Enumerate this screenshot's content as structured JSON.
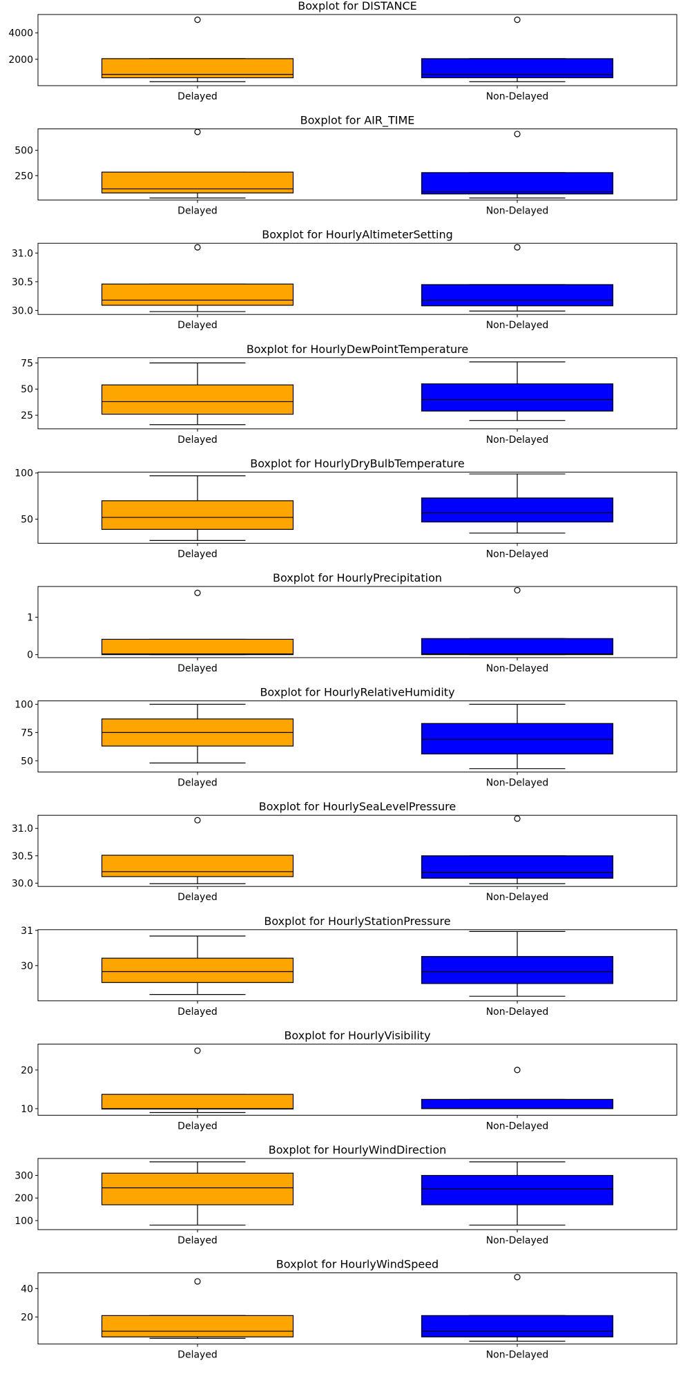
{
  "categories": [
    "Delayed",
    "Non-Delayed"
  ],
  "colors": {
    "Delayed": "#ffa500",
    "Non-Delayed": "#0000ff"
  },
  "chart_data": [
    {
      "type": "boxplot",
      "title": "Boxplot for DISTANCE",
      "ylim": [
        0,
        5400
      ],
      "yticks": [
        2000,
        4000
      ],
      "ytick_labels": [
        "2000",
        "4000"
      ],
      "boxes": [
        {
          "category": "Delayed",
          "whislo": 300,
          "q1": 600,
          "med": 850,
          "q3": 2050,
          "whishi": 2050,
          "fliers": [
            5000
          ]
        },
        {
          "category": "Non-Delayed",
          "whislo": 300,
          "q1": 600,
          "med": 850,
          "q3": 2050,
          "whishi": 2050,
          "fliers": [
            5000
          ]
        }
      ]
    },
    {
      "type": "boxplot",
      "title": "Boxplot for AIR_TIME",
      "ylim": [
        10,
        710
      ],
      "yticks": [
        250,
        500
      ],
      "ytick_labels": [
        "250",
        "500"
      ],
      "boxes": [
        {
          "category": "Delayed",
          "whislo": 30,
          "q1": 80,
          "med": 120,
          "q3": 285,
          "whishi": 285,
          "fliers": [
            680
          ]
        },
        {
          "category": "Non-Delayed",
          "whislo": 30,
          "q1": 70,
          "med": 90,
          "q3": 280,
          "whishi": 280,
          "fliers": [
            660
          ]
        }
      ]
    },
    {
      "type": "boxplot",
      "title": "Boxplot for HourlyAltimeterSetting",
      "ylim": [
        29.93,
        31.17
      ],
      "yticks": [
        30.0,
        30.5,
        31.0
      ],
      "ytick_labels": [
        "30.0",
        "30.5",
        "31.0"
      ],
      "boxes": [
        {
          "category": "Delayed",
          "whislo": 29.98,
          "q1": 30.09,
          "med": 30.18,
          "q3": 30.46,
          "whishi": 30.46,
          "fliers": [
            31.1
          ]
        },
        {
          "category": "Non-Delayed",
          "whislo": 29.99,
          "q1": 30.08,
          "med": 30.18,
          "q3": 30.45,
          "whishi": 30.45,
          "fliers": [
            31.1
          ]
        }
      ]
    },
    {
      "type": "boxplot",
      "title": "Boxplot for HourlyDewPointTemperature",
      "ylim": [
        12,
        80
      ],
      "yticks": [
        25,
        50,
        75
      ],
      "ytick_labels": [
        "25",
        "50",
        "75"
      ],
      "boxes": [
        {
          "category": "Delayed",
          "whislo": 16,
          "q1": 26,
          "med": 38,
          "q3": 54,
          "whishi": 75,
          "fliers": []
        },
        {
          "category": "Non-Delayed",
          "whislo": 20,
          "q1": 29,
          "med": 40,
          "q3": 55,
          "whishi": 76,
          "fliers": []
        }
      ]
    },
    {
      "type": "boxplot",
      "title": "Boxplot for HourlyDryBulbTemperature",
      "ylim": [
        24,
        101
      ],
      "yticks": [
        50,
        100
      ],
      "ytick_labels": [
        "50",
        "100"
      ],
      "boxes": [
        {
          "category": "Delayed",
          "whislo": 27,
          "q1": 39,
          "med": 52,
          "q3": 70,
          "whishi": 97,
          "fliers": []
        },
        {
          "category": "Non-Delayed",
          "whislo": 35,
          "q1": 47,
          "med": 57,
          "q3": 73,
          "whishi": 99,
          "fliers": []
        }
      ]
    },
    {
      "type": "boxplot",
      "title": "Boxplot for HourlyPrecipitation",
      "ylim": [
        -0.08,
        1.82
      ],
      "yticks": [
        0,
        1
      ],
      "ytick_labels": [
        "0",
        "1"
      ],
      "boxes": [
        {
          "category": "Delayed",
          "whislo": 0,
          "q1": 0.0,
          "med": 0.02,
          "q3": 0.41,
          "whishi": 0.41,
          "fliers": [
            1.65
          ]
        },
        {
          "category": "Non-Delayed",
          "whislo": 0,
          "q1": 0.0,
          "med": 0.02,
          "q3": 0.43,
          "whishi": 0.43,
          "fliers": [
            1.72
          ]
        }
      ]
    },
    {
      "type": "boxplot",
      "title": "Boxplot for HourlyRelativeHumidity",
      "ylim": [
        40,
        103
      ],
      "yticks": [
        50,
        75,
        100
      ],
      "ytick_labels": [
        "50",
        "75",
        "100"
      ],
      "boxes": [
        {
          "category": "Delayed",
          "whislo": 48,
          "q1": 63,
          "med": 75,
          "q3": 87,
          "whishi": 100,
          "fliers": []
        },
        {
          "category": "Non-Delayed",
          "whislo": 43,
          "q1": 56,
          "med": 69,
          "q3": 83,
          "whishi": 100,
          "fliers": []
        }
      ]
    },
    {
      "type": "boxplot",
      "title": "Boxplot for HourlySeaLevelPressure",
      "ylim": [
        29.94,
        31.24
      ],
      "yticks": [
        30.0,
        30.5,
        31.0
      ],
      "ytick_labels": [
        "30.0",
        "30.5",
        "31.0"
      ],
      "boxes": [
        {
          "category": "Delayed",
          "whislo": 29.99,
          "q1": 30.12,
          "med": 30.21,
          "q3": 30.51,
          "whishi": 30.51,
          "fliers": [
            31.15
          ]
        },
        {
          "category": "Non-Delayed",
          "whislo": 29.99,
          "q1": 30.09,
          "med": 30.2,
          "q3": 30.5,
          "whishi": 30.5,
          "fliers": [
            31.18
          ]
        }
      ]
    },
    {
      "type": "boxplot",
      "title": "Boxplot for HourlyStationPressure",
      "ylim": [
        29.0,
        31.02
      ],
      "yticks": [
        30,
        31
      ],
      "ytick_labels": [
        "30",
        "31"
      ],
      "boxes": [
        {
          "category": "Delayed",
          "whislo": 29.18,
          "q1": 29.52,
          "med": 29.83,
          "q3": 30.21,
          "whishi": 30.84,
          "fliers": []
        },
        {
          "category": "Non-Delayed",
          "whislo": 29.13,
          "q1": 29.49,
          "med": 29.83,
          "q3": 30.26,
          "whishi": 30.97,
          "fliers": []
        }
      ]
    },
    {
      "type": "boxplot",
      "title": "Boxplot for HourlyVisibility",
      "ylim": [
        8.3,
        26.7
      ],
      "yticks": [
        10,
        20
      ],
      "ytick_labels": [
        "10",
        "20"
      ],
      "boxes": [
        {
          "category": "Delayed",
          "whislo": 9.0,
          "q1": 9.9,
          "med": 10.0,
          "q3": 13.7,
          "whishi": 13.7,
          "fliers": [
            25.0
          ]
        },
        {
          "category": "Non-Delayed",
          "whislo": 10.0,
          "q1": 10.0,
          "med": 10.0,
          "q3": 12.4,
          "whishi": 12.4,
          "fliers": [
            20.0
          ]
        }
      ]
    },
    {
      "type": "boxplot",
      "title": "Boxplot for HourlyWindDirection",
      "ylim": [
        60,
        375
      ],
      "yticks": [
        100,
        200,
        300
      ],
      "ytick_labels": [
        "100",
        "200",
        "300"
      ],
      "boxes": [
        {
          "category": "Delayed",
          "whislo": 80,
          "q1": 170,
          "med": 245,
          "q3": 310,
          "whishi": 360,
          "fliers": []
        },
        {
          "category": "Non-Delayed",
          "whislo": 80,
          "q1": 170,
          "med": 240,
          "q3": 300,
          "whishi": 360,
          "fliers": []
        }
      ]
    },
    {
      "type": "boxplot",
      "title": "Boxplot for HourlyWindSpeed",
      "ylim": [
        1,
        51
      ],
      "yticks": [
        20,
        40
      ],
      "ytick_labels": [
        "20",
        "40"
      ],
      "boxes": [
        {
          "category": "Delayed",
          "whislo": 5,
          "q1": 6,
          "med": 10,
          "q3": 21,
          "whishi": 21,
          "fliers": [
            45
          ]
        },
        {
          "category": "Non-Delayed",
          "whislo": 3,
          "q1": 6,
          "med": 10,
          "q3": 21,
          "whishi": 21,
          "fliers": [
            48
          ]
        }
      ]
    }
  ]
}
